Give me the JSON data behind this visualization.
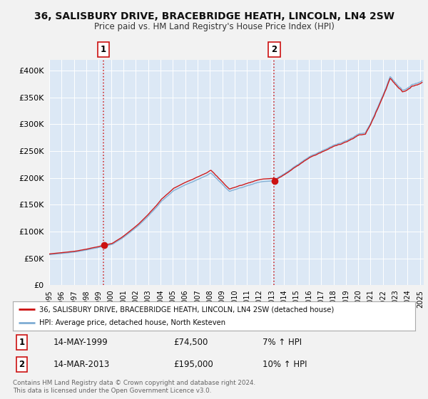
{
  "title": "36, SALISBURY DRIVE, BRACEBRIDGE HEATH, LINCOLN, LN4 2SW",
  "subtitle": "Price paid vs. HM Land Registry's House Price Index (HPI)",
  "bg_color": "#f2f2f2",
  "plot_bg_color": "#dce8f5",
  "red_color": "#cc1111",
  "blue_color": "#7fadd4",
  "legend_label_red": "36, SALISBURY DRIVE, BRACEBRIDGE HEATH, LINCOLN, LN4 2SW (detached house)",
  "legend_label_blue": "HPI: Average price, detached house, North Kesteven",
  "sale1_date": 1999.37,
  "sale1_price": 74500,
  "sale2_date": 2013.2,
  "sale2_price": 195000,
  "annotation1": [
    "1",
    "14-MAY-1999",
    "£74,500",
    "7% ↑ HPI"
  ],
  "annotation2": [
    "2",
    "14-MAR-2013",
    "£195,000",
    "10% ↑ HPI"
  ],
  "footer": "Contains HM Land Registry data © Crown copyright and database right 2024.\nThis data is licensed under the Open Government Licence v3.0.",
  "ylim": [
    0,
    420000
  ],
  "xlim_start": 1995.0,
  "xlim_end": 2025.3,
  "yticks": [
    0,
    50000,
    100000,
    150000,
    200000,
    250000,
    300000,
    350000,
    400000
  ],
  "ytick_labels": [
    "£0",
    "£50K",
    "£100K",
    "£150K",
    "£200K",
    "£250K",
    "£300K",
    "£350K",
    "£400K"
  ]
}
